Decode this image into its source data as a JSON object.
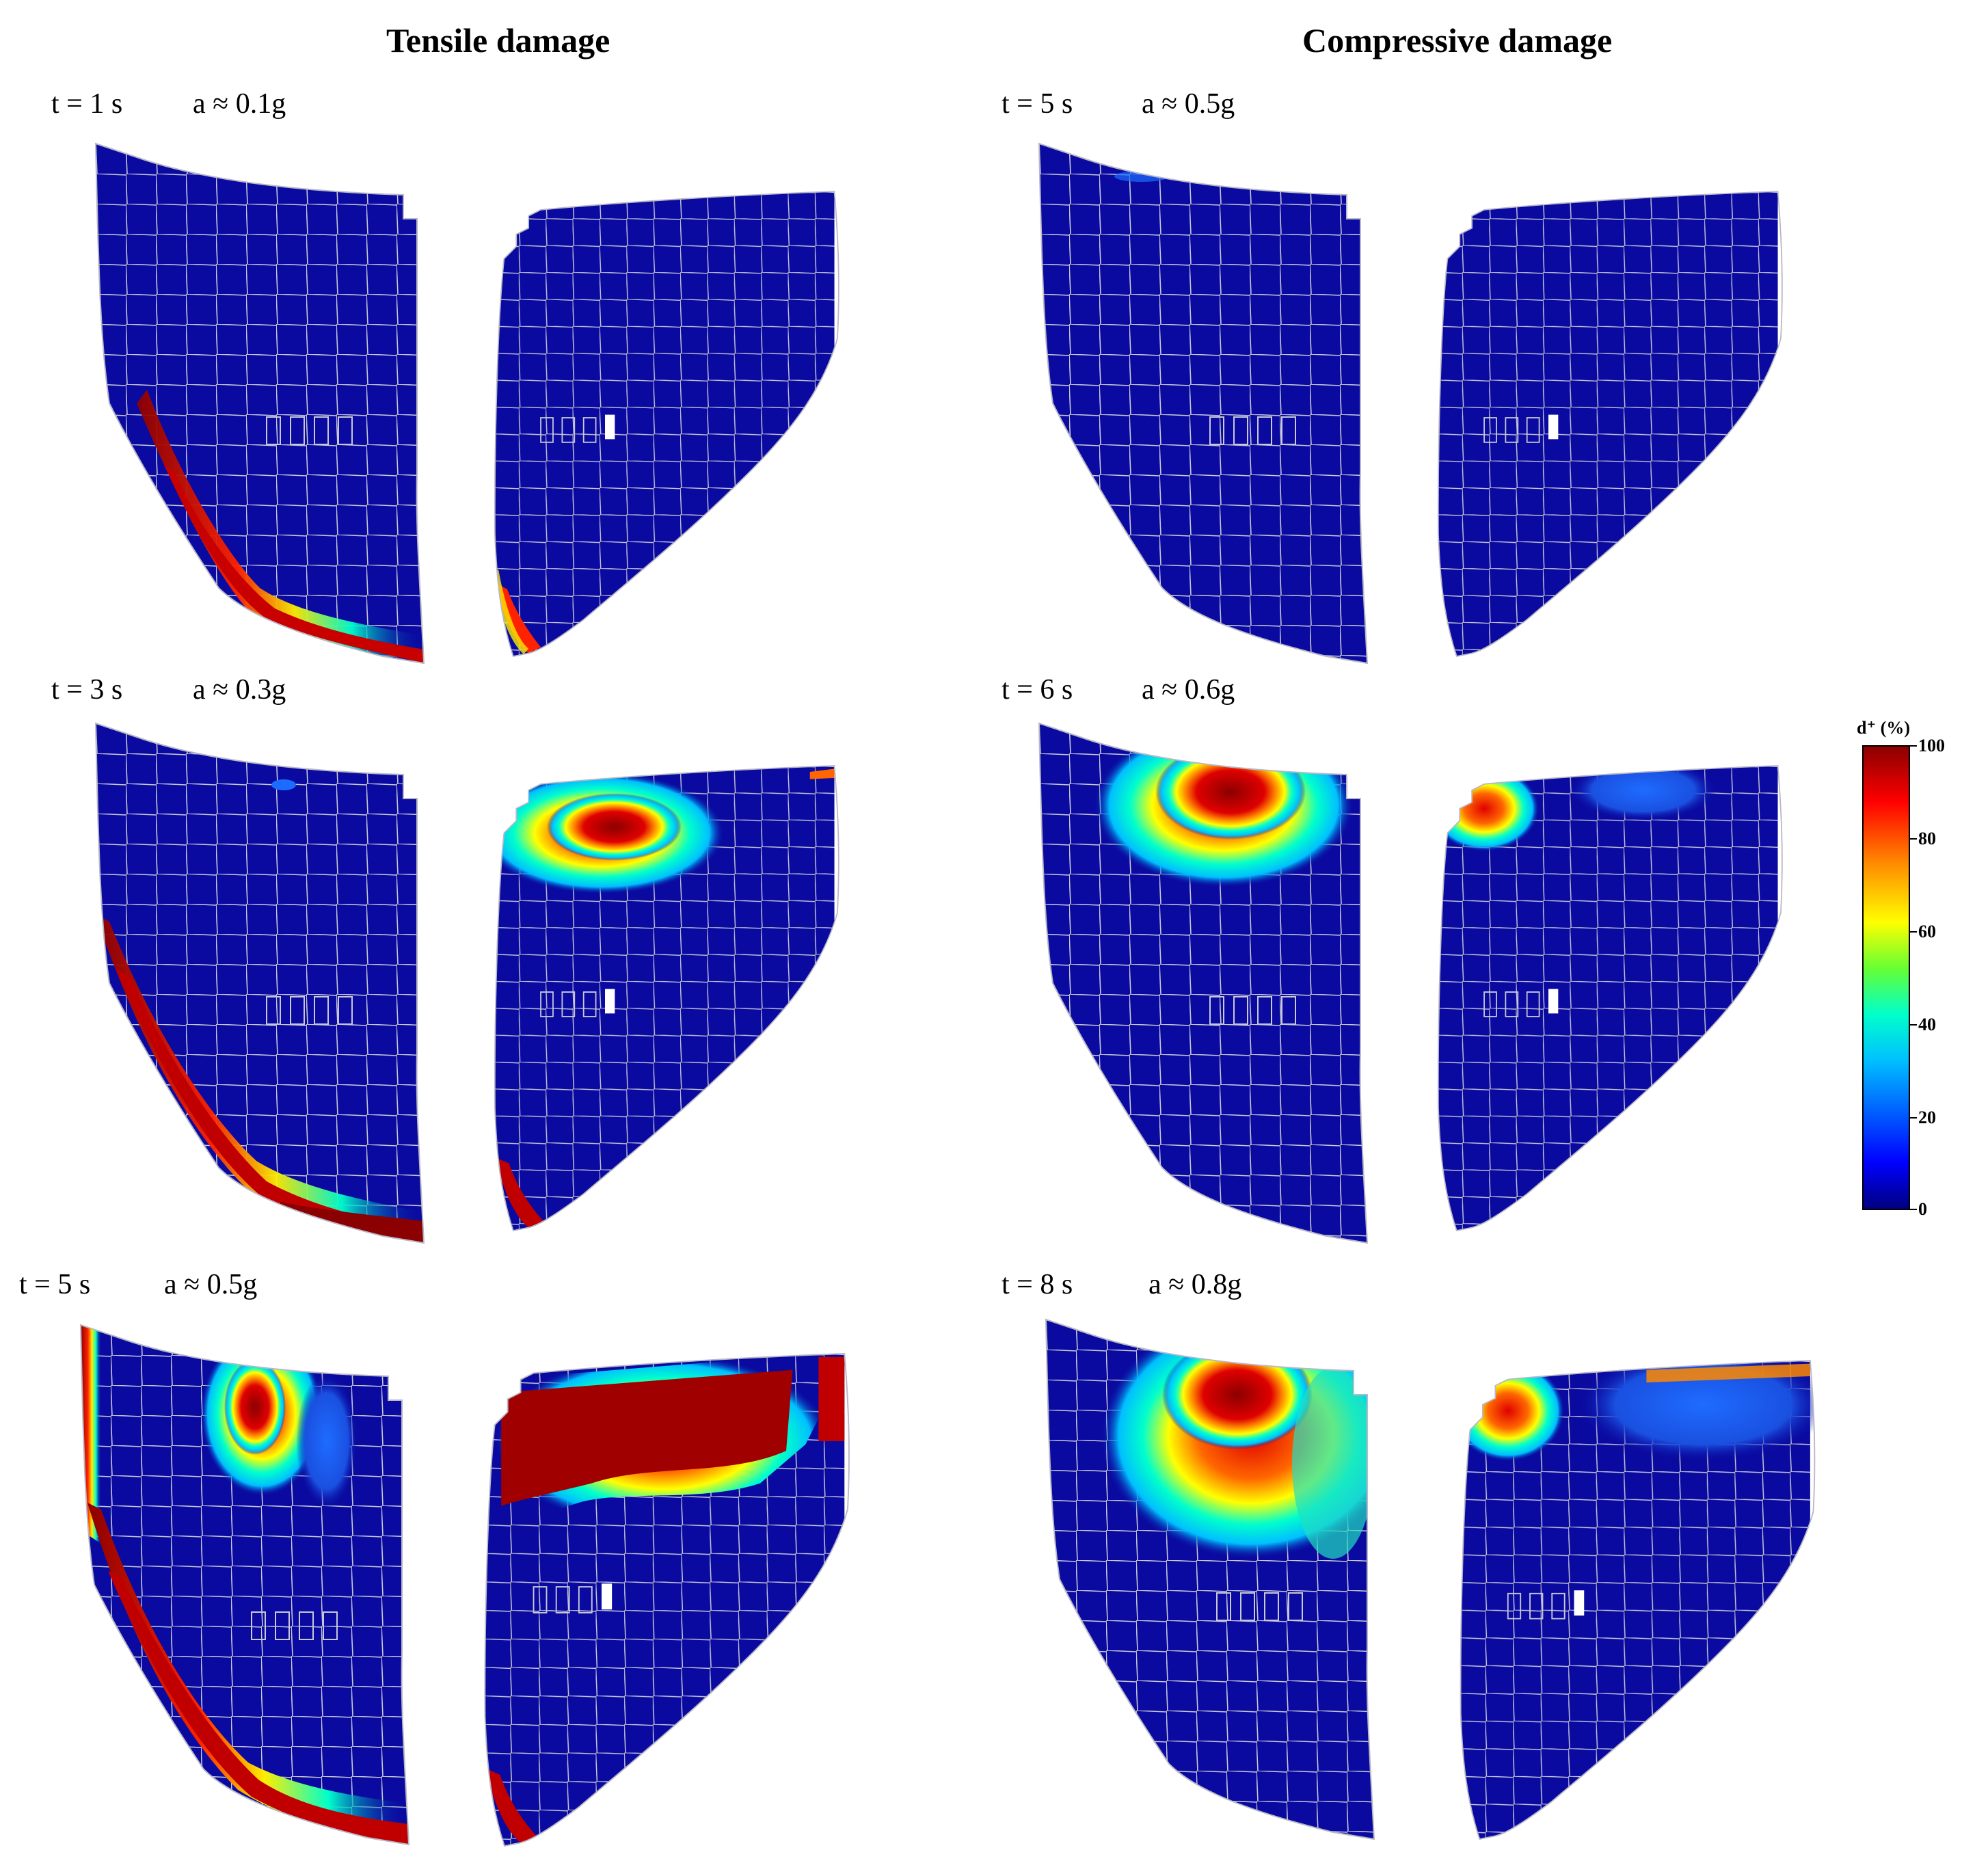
{
  "columns": {
    "left": "Tensile damage",
    "right": "Compressive damage"
  },
  "rows": [
    {
      "tensile": {
        "time": "t = 1 s",
        "accel": "a ≈ 0.1g"
      },
      "compressive": {
        "time": "t = 5 s",
        "accel": "a ≈ 0.5g"
      }
    },
    {
      "tensile": {
        "time": "t = 3 s",
        "accel": "a ≈ 0.3g"
      },
      "compressive": {
        "time": "t = 6 s",
        "accel": "a ≈ 0.6g"
      }
    },
    {
      "tensile": {
        "time": "t = 5 s",
        "accel": "a ≈ 0.5g"
      },
      "compressive": {
        "time": "t = 8 s",
        "accel": "a ≈ 0.8g"
      }
    }
  ],
  "colorbar": {
    "title": "d⁺ (%)",
    "ticks": [
      "100",
      "80",
      "60",
      "40",
      "20",
      "0"
    ],
    "colors": [
      "#000080",
      "#0000ff",
      "#00bfff",
      "#00ffcc",
      "#66ff33",
      "#ffff00",
      "#ff8800",
      "#ff0000",
      "#8b0000"
    ]
  },
  "colors": {
    "mesh_fill": "#0a0aa0",
    "mesh_line": "#c8c8d8"
  }
}
